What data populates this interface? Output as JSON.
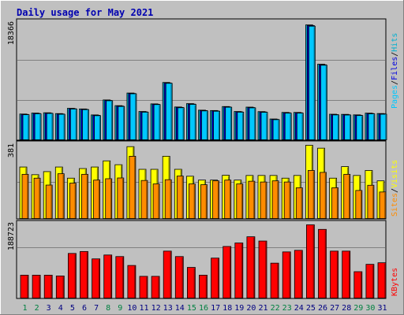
{
  "colors": {
    "background": "#c0c0c0",
    "title": "#0000b0",
    "hits": "#00b0d0",
    "files": "#0000e0",
    "pages": "#00c8ff",
    "visits": "#ffff00",
    "sites": "#ff8c00",
    "kbytes": "#ff0000",
    "weekend_day": "#008040",
    "weekday_day": "#000080"
  },
  "chart_data": [
    {
      "type": "bar",
      "title": "Daily usage for May 2021",
      "panel": "hits-files-pages",
      "categories": [
        "1",
        "2",
        "3",
        "4",
        "5",
        "6",
        "7",
        "8",
        "9",
        "10",
        "11",
        "12",
        "13",
        "14",
        "15",
        "16",
        "17",
        "18",
        "19",
        "20",
        "21",
        "22",
        "23",
        "24",
        "25",
        "26",
        "27",
        "28",
        "29",
        "30",
        "31"
      ],
      "weekend_days": [
        "1",
        "2",
        "8",
        "9",
        "15",
        "16",
        "22",
        "23",
        "29",
        "30"
      ],
      "ylabel_parts": [
        "Pages",
        "Files",
        "Hits"
      ],
      "ymax_label": "18366",
      "ylim": [
        0,
        18366
      ],
      "series": [
        {
          "name": "Hits",
          "values": [
            4060,
            4210,
            4260,
            4130,
            4960,
            4860,
            3920,
            6280,
            5380,
            7370,
            4460,
            5660,
            9030,
            5170,
            5700,
            4670,
            4610,
            5240,
            4460,
            5150,
            4440,
            3280,
            4310,
            4310,
            18100,
            11910,
            4030,
            4010,
            3930,
            4200,
            4140
          ]
        },
        {
          "name": "Files",
          "values": [
            4000,
            4150,
            4200,
            4070,
            4900,
            4800,
            3860,
            6200,
            5310,
            7300,
            4400,
            5600,
            8950,
            5100,
            5630,
            4600,
            4550,
            5180,
            4400,
            5080,
            4380,
            3220,
            4250,
            4250,
            18000,
            11820,
            3970,
            3950,
            3870,
            4140,
            4080
          ]
        },
        {
          "name": "Pages",
          "values": [
            3950,
            4100,
            4150,
            4020,
            4850,
            4750,
            3800,
            6150,
            5250,
            7250,
            4350,
            5550,
            8900,
            5050,
            5580,
            4550,
            4500,
            5130,
            4350,
            5030,
            4330,
            3170,
            4200,
            4200,
            17900,
            11750,
            3920,
            3900,
            3820,
            4090,
            4030
          ]
        }
      ]
    },
    {
      "type": "bar",
      "panel": "visits-sites",
      "categories": [
        "1",
        "2",
        "3",
        "4",
        "5",
        "6",
        "7",
        "8",
        "9",
        "10",
        "11",
        "12",
        "13",
        "14",
        "15",
        "16",
        "17",
        "18",
        "19",
        "20",
        "21",
        "22",
        "23",
        "24",
        "25",
        "26",
        "27",
        "28",
        "29",
        "30",
        "31"
      ],
      "ylabel_parts": [
        "Sites",
        "Visits"
      ],
      "ymax_label": "381",
      "ylim": [
        0,
        381
      ],
      "series": [
        {
          "name": "Visits",
          "values": [
            268,
            228,
            244,
            268,
            210,
            260,
            268,
            300,
            280,
            374,
            256,
            256,
            324,
            256,
            220,
            200,
            200,
            225,
            200,
            224,
            224,
            224,
            210,
            224,
            381,
            366,
            210,
            270,
            224,
            250,
            196
          ]
        },
        {
          "name": "Sites",
          "values": [
            230,
            210,
            174,
            233,
            184,
            230,
            200,
            207,
            211,
            324,
            198,
            180,
            202,
            221,
            180,
            176,
            196,
            200,
            180,
            194,
            190,
            196,
            190,
            160,
            250,
            240,
            160,
            230,
            146,
            173,
            138
          ]
        }
      ]
    },
    {
      "type": "bar",
      "panel": "kbytes",
      "categories": [
        "1",
        "2",
        "3",
        "4",
        "5",
        "6",
        "7",
        "8",
        "9",
        "10",
        "11",
        "12",
        "13",
        "14",
        "15",
        "16",
        "17",
        "18",
        "19",
        "20",
        "21",
        "22",
        "23",
        "24",
        "25",
        "26",
        "27",
        "28",
        "29",
        "30",
        "31"
      ],
      "ylabel_parts": [
        "KBytes"
      ],
      "ymax_label": "188723",
      "ylim": [
        0,
        188723
      ],
      "series": [
        {
          "name": "KBytes",
          "values": [
            59000,
            59000,
            59000,
            57000,
            115000,
            120000,
            101000,
            111000,
            107000,
            84000,
            56000,
            56000,
            121000,
            107000,
            79000,
            59000,
            103000,
            133000,
            142000,
            158000,
            147000,
            90000,
            119000,
            123000,
            188723,
            177000,
            121000,
            121000,
            68000,
            87000,
            91000
          ]
        }
      ]
    }
  ]
}
